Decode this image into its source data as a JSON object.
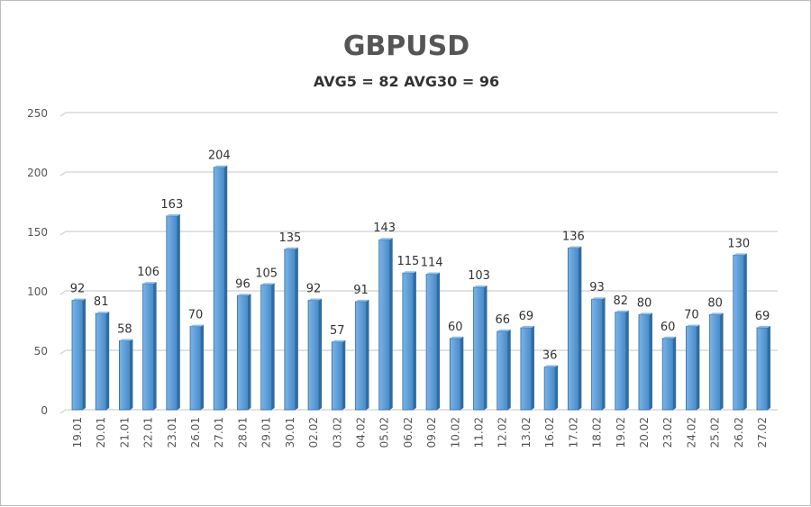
{
  "chart_data": {
    "type": "bar",
    "title": "GBPUSD",
    "subtitle": "AVG5 = 82 AVG30 = 96",
    "xlabel": "",
    "ylabel": "",
    "ylim": [
      0,
      250
    ],
    "yticks": [
      0,
      50,
      100,
      150,
      200,
      250
    ],
    "grid": true,
    "legend": "none",
    "categories": [
      "19.01",
      "20.01",
      "21.01",
      "22.01",
      "23.01",
      "26.01",
      "27.01",
      "28.01",
      "29.01",
      "30.01",
      "02.02",
      "03.02",
      "04.02",
      "05.02",
      "06.02",
      "09.02",
      "10.02",
      "11.02",
      "12.02",
      "13.02",
      "16.02",
      "17.02",
      "18.02",
      "19.02",
      "20.02",
      "23.02",
      "24.02",
      "25.02",
      "26.02",
      "27.02"
    ],
    "values": [
      92,
      81,
      58,
      106,
      163,
      70,
      204,
      96,
      105,
      135,
      92,
      57,
      91,
      143,
      115,
      114,
      60,
      103,
      66,
      69,
      36,
      136,
      93,
      82,
      80,
      60,
      70,
      80,
      130,
      69
    ],
    "colors": {
      "bar": "#5b9bd5",
      "bar_dark": "#2e6da4",
      "grid": "#d9d9d9"
    }
  }
}
